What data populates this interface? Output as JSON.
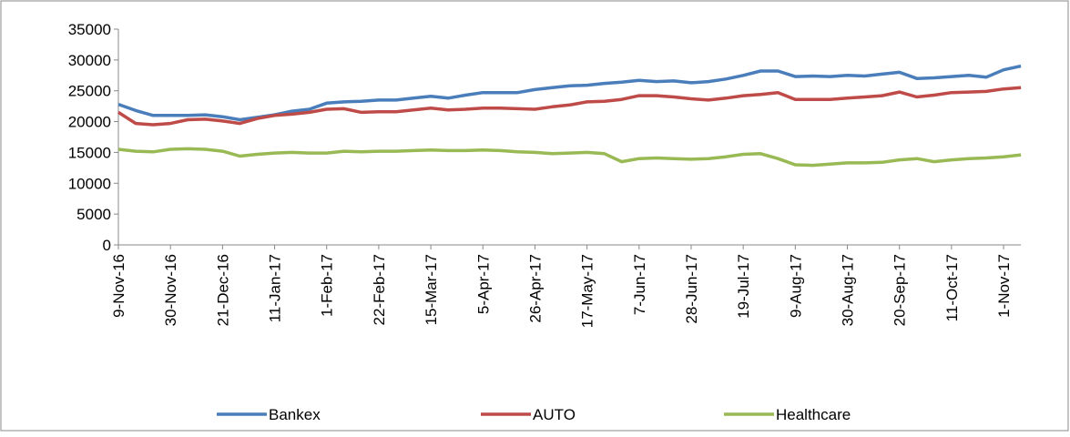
{
  "chart_data": {
    "type": "line",
    "categories": [
      "9-Nov-16",
      null,
      null,
      "30-Nov-16",
      null,
      null,
      "21-Dec-16",
      null,
      null,
      "11-Jan-17",
      null,
      null,
      "1-Feb-17",
      null,
      null,
      "22-Feb-17",
      null,
      null,
      "15-Mar-17",
      null,
      null,
      "5-Apr-17",
      null,
      null,
      "26-Apr-17",
      null,
      null,
      "17-May-17",
      null,
      null,
      "7-Jun-17",
      null,
      null,
      "28-Jun-17",
      null,
      null,
      "19-Jul-17",
      null,
      null,
      "9-Aug-17",
      null,
      null,
      "30-Aug-17",
      null,
      null,
      "20-Sep-17",
      null,
      null,
      "11-Oct-17",
      null,
      null,
      "1-Nov-17",
      null
    ],
    "series": [
      {
        "name": "Bankex",
        "color": "#4a7ebb",
        "values": [
          22800,
          21800,
          21000,
          21000,
          21000,
          21100,
          20800,
          20300,
          20700,
          21100,
          21700,
          22000,
          23000,
          23200,
          23300,
          23500,
          23500,
          23800,
          24100,
          23800,
          24300,
          24700,
          24700,
          24700,
          25200,
          25500,
          25800,
          25900,
          26200,
          26400,
          26700,
          26500,
          26600,
          26300,
          26500,
          26900,
          27500,
          28200,
          28200,
          27300,
          27400,
          27300,
          27500,
          27400,
          27700,
          28000,
          27000,
          27100,
          27300,
          27500,
          27200,
          28400,
          29000
        ]
      },
      {
        "name": "AUTO",
        "color": "#be4b48",
        "values": [
          21500,
          19700,
          19500,
          19700,
          20300,
          20400,
          20100,
          19700,
          20500,
          21000,
          21200,
          21500,
          22000,
          22100,
          21500,
          21600,
          21600,
          21900,
          22200,
          21900,
          22000,
          22200,
          22200,
          22100,
          22000,
          22400,
          22700,
          23200,
          23300,
          23600,
          24200,
          24200,
          24000,
          23700,
          23500,
          23800,
          24200,
          24400,
          24700,
          23600,
          23600,
          23600,
          23800,
          24000,
          24200,
          24800,
          24000,
          24300,
          24700,
          24800,
          24900,
          25300,
          25500
        ]
      },
      {
        "name": "Healthcare",
        "color": "#98b954",
        "values": [
          15500,
          15200,
          15100,
          15500,
          15600,
          15500,
          15200,
          14400,
          14700,
          14900,
          15000,
          14900,
          14900,
          15200,
          15100,
          15200,
          15200,
          15300,
          15400,
          15300,
          15300,
          15400,
          15300,
          15100,
          15000,
          14800,
          14900,
          15000,
          14800,
          13500,
          14000,
          14100,
          14000,
          13900,
          14000,
          14300,
          14700,
          14800,
          14000,
          13000,
          12900,
          13100,
          13300,
          13300,
          13400,
          13800,
          14000,
          13500,
          13800,
          14000,
          14100,
          14300,
          14600
        ]
      }
    ],
    "ylim": [
      0,
      35000
    ],
    "yticks": [
      0,
      5000,
      10000,
      15000,
      20000,
      25000,
      30000,
      35000
    ],
    "legend": "bottom"
  }
}
